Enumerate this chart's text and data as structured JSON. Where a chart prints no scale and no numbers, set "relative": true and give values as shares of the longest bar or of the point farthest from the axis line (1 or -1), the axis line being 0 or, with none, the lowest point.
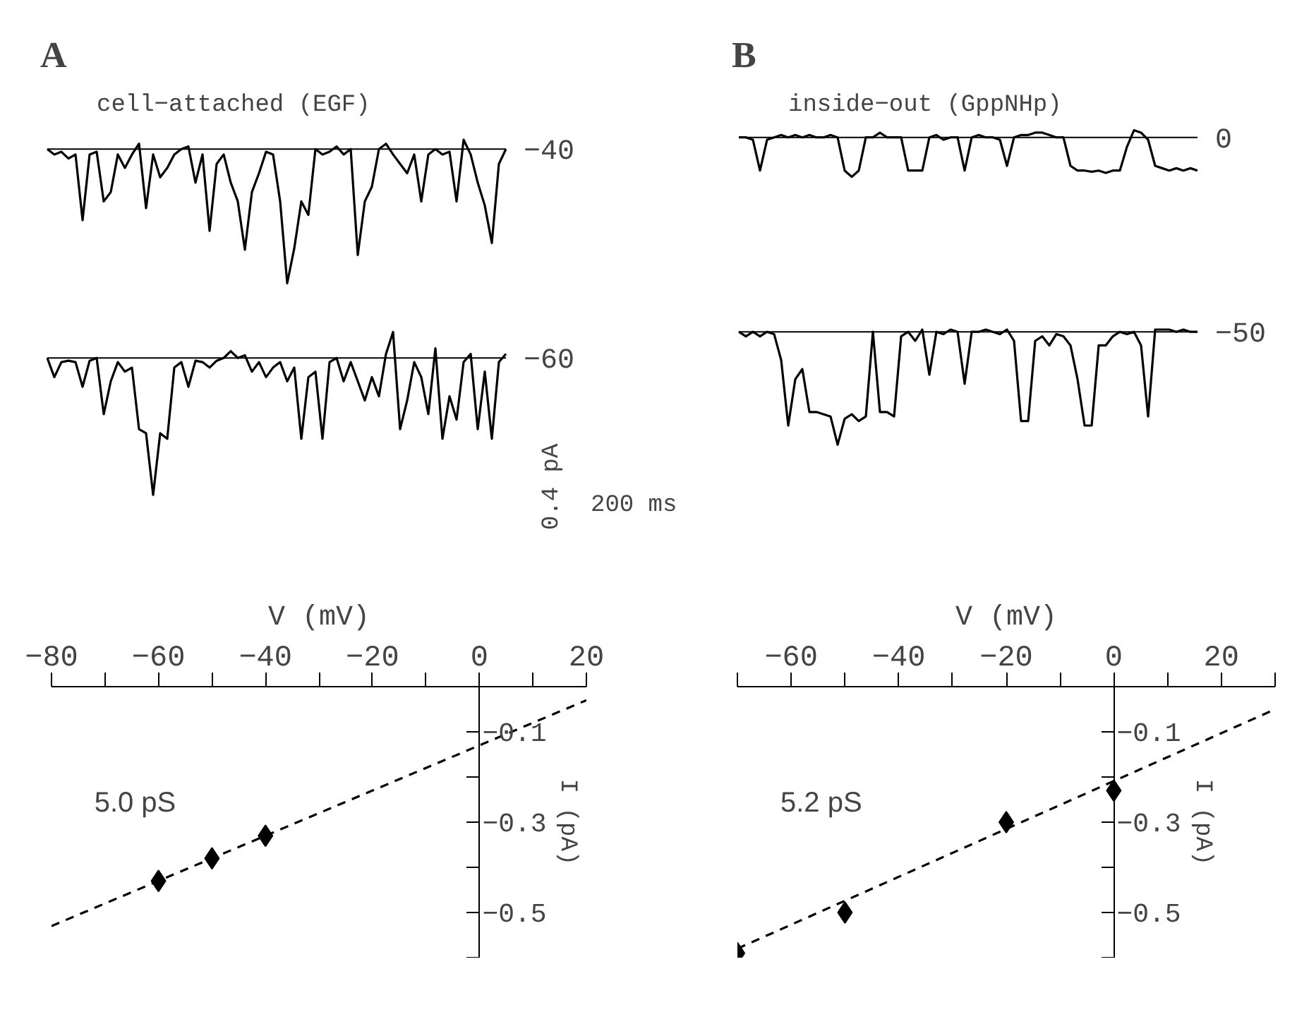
{
  "chart_data": [
    {
      "type": "line",
      "relative": true,
      "title": "A",
      "subtitle": "cell−attached (EGF)",
      "categories": [
        null,
        null,
        null,
        null,
        null,
        null,
        null,
        null,
        null,
        null,
        null,
        null,
        null,
        null,
        null,
        null,
        null,
        null,
        null,
        null,
        null,
        null,
        null,
        null,
        null,
        null,
        null,
        null,
        null,
        null,
        null,
        null,
        null,
        null,
        null,
        null,
        null,
        null,
        null,
        null,
        null,
        null,
        null,
        null,
        null,
        null,
        null,
        null,
        null,
        null,
        null,
        null,
        null,
        null,
        null,
        null,
        null,
        null,
        null,
        null,
        null,
        null,
        null,
        null,
        null,
        null
      ],
      "series": [
        {
          "color": "#000000",
          "values": [
            0,
            -0.04,
            -0.02,
            -0.07,
            -0.04,
            -0.53,
            -0.04,
            -0.02,
            -0.39,
            -0.32,
            -0.04,
            -0.14,
            -0.04,
            0.04,
            -0.44,
            -0.04,
            -0.21,
            -0.14,
            -0.04,
            0,
            0.02,
            -0.25,
            -0.04,
            -0.61,
            -0.11,
            -0.04,
            -0.25,
            -0.39,
            -0.75,
            -0.32,
            -0.18,
            -0.02,
            -0.04,
            -0.39,
            -1,
            -0.74,
            -0.39,
            -0.49,
            0,
            -0.04,
            -0.02,
            0.02,
            -0.04,
            0,
            -0.79,
            -0.39,
            -0.28,
            0,
            0.04,
            -0.04,
            -0.11,
            -0.18,
            -0.04,
            -0.39,
            -0.04,
            0,
            -0.04,
            -0.02,
            -0.39,
            0.07,
            -0.04,
            -0.25,
            -0.42,
            -0.7,
            -0.11,
            0
          ]
        }
      ],
      "ref_lines": [
        {
          "axis": "y",
          "value": 0,
          "label": "−40",
          "color": "#000000"
        }
      ]
    },
    {
      "type": "line",
      "relative": true,
      "title": "B",
      "subtitle": "inside−out (GppNHp)",
      "categories": [
        null,
        null,
        null,
        null,
        null,
        null,
        null,
        null,
        null,
        null,
        null,
        null,
        null,
        null,
        null,
        null,
        null,
        null,
        null,
        null,
        null,
        null,
        null,
        null,
        null,
        null,
        null,
        null,
        null,
        null,
        null,
        null,
        null,
        null,
        null,
        null,
        null,
        null,
        null,
        null,
        null,
        null,
        null,
        null,
        null,
        null,
        null,
        null,
        null,
        null,
        null,
        null,
        null,
        null,
        null,
        null,
        null,
        null,
        null,
        null,
        null,
        null,
        null,
        null,
        null,
        null
      ],
      "series": [
        {
          "color": "#000000",
          "values": [
            0,
            0,
            -0.06,
            -0.84,
            -0.06,
            0,
            0.06,
            0,
            0.06,
            0,
            0.06,
            0,
            0,
            0.06,
            0,
            -0.84,
            -1,
            -0.84,
            0,
            0,
            0.12,
            0,
            0,
            0,
            -0.84,
            -0.84,
            -0.84,
            0,
            0.06,
            -0.06,
            0,
            0,
            -0.84,
            0,
            0.06,
            0,
            0,
            -0.06,
            -0.72,
            0,
            0.06,
            0.06,
            0.12,
            0.12,
            0.06,
            0,
            0,
            -0.72,
            -0.84,
            -0.84,
            -0.87,
            -0.84,
            -0.9,
            -0.84,
            -0.84,
            -0.24,
            0.18,
            0.12,
            -0.06,
            -0.72,
            -0.78,
            -0.84,
            -0.78,
            -0.84,
            -0.78,
            -0.84
          ]
        }
      ],
      "ref_lines": [
        {
          "axis": "y",
          "value": 0,
          "label": "0",
          "color": "#000000"
        }
      ]
    },
    {
      "type": "line",
      "relative": true,
      "categories": [
        null,
        null,
        null,
        null,
        null,
        null,
        null,
        null,
        null,
        null,
        null,
        null,
        null,
        null,
        null,
        null,
        null,
        null,
        null,
        null,
        null,
        null,
        null,
        null,
        null,
        null,
        null,
        null,
        null,
        null,
        null,
        null,
        null,
        null,
        null,
        null,
        null,
        null,
        null,
        null,
        null,
        null,
        null,
        null,
        null,
        null,
        null,
        null,
        null,
        null,
        null,
        null,
        null,
        null,
        null,
        null,
        null,
        null,
        null,
        null,
        null,
        null,
        null,
        null,
        null,
        null
      ],
      "series": [
        {
          "color": "#000000",
          "values": [
            0,
            -0.14,
            -0.03,
            -0.02,
            -0.03,
            -0.21,
            -0.02,
            0,
            -0.41,
            -0.17,
            -0.03,
            -0.1,
            -0.07,
            -0.52,
            -0.55,
            -1,
            -0.55,
            -0.59,
            -0.07,
            -0.03,
            -0.21,
            -0.02,
            -0.03,
            -0.07,
            -0.02,
            0,
            0.05,
            0,
            0.02,
            -0.1,
            -0.03,
            -0.14,
            -0.07,
            -0.03,
            -0.17,
            -0.07,
            -0.59,
            -0.14,
            -0.1,
            -0.59,
            -0.03,
            0,
            -0.17,
            -0.03,
            -0.17,
            -0.31,
            -0.14,
            -0.28,
            0.03,
            0.19,
            -0.52,
            -0.31,
            -0.03,
            -0.14,
            -0.41,
            0.07,
            -0.59,
            -0.28,
            -0.45,
            -0.03,
            0.03,
            -0.52,
            -0.1,
            -0.59,
            -0.03,
            0.03
          ]
        }
      ],
      "ref_lines": [
        {
          "axis": "y",
          "value": 0,
          "label": "−60",
          "color": "#000000"
        }
      ],
      "annotations": [
        "0.4 pA",
        "200 ms"
      ]
    },
    {
      "type": "line",
      "relative": true,
      "categories": [
        null,
        null,
        null,
        null,
        null,
        null,
        null,
        null,
        null,
        null,
        null,
        null,
        null,
        null,
        null,
        null,
        null,
        null,
        null,
        null,
        null,
        null,
        null,
        null,
        null,
        null,
        null,
        null,
        null,
        null,
        null,
        null,
        null,
        null,
        null,
        null,
        null,
        null,
        null,
        null,
        null,
        null,
        null,
        null,
        null,
        null,
        null,
        null,
        null,
        null,
        null,
        null,
        null,
        null,
        null,
        null,
        null,
        null,
        null,
        null,
        null,
        null,
        null,
        null,
        null,
        null
      ],
      "series": [
        {
          "color": "#000000",
          "values": [
            0,
            -0.04,
            0,
            -0.04,
            0,
            -0.02,
            -0.25,
            -0.83,
            -0.42,
            -0.33,
            -0.71,
            -0.71,
            -0.73,
            -0.75,
            -1,
            -0.77,
            -0.73,
            -0.79,
            -0.75,
            0,
            -0.71,
            -0.71,
            -0.75,
            -0.04,
            0,
            -0.08,
            0.02,
            -0.38,
            0,
            -0.02,
            0.02,
            0,
            -0.46,
            0,
            0,
            0.02,
            0,
            -0.02,
            0.02,
            -0.08,
            -0.79,
            -0.79,
            -0.08,
            -0.04,
            -0.12,
            -0.02,
            -0.04,
            -0.12,
            -0.42,
            -0.83,
            -0.83,
            -0.12,
            -0.12,
            -0.04,
            0,
            -0.02,
            0,
            -0.12,
            -0.75,
            0.02,
            0.02,
            0.02,
            0,
            0.02,
            0,
            0
          ]
        }
      ],
      "ref_lines": [
        {
          "axis": "y",
          "value": 0,
          "label": "−50",
          "color": "#000000"
        }
      ]
    },
    {
      "type": "scatter",
      "xlabel": "V (mV)",
      "ylabel": "I (pA)",
      "xlim": [
        -80,
        20
      ],
      "ylim": [
        -0.6,
        0
      ],
      "xticks": [
        -80,
        {
          "value": -70,
          "label": null
        },
        -60,
        {
          "value": -50,
          "label": null
        },
        -40,
        {
          "value": -30,
          "label": null
        },
        -20,
        {
          "value": -10,
          "label": null
        },
        0,
        {
          "value": 10,
          "label": null
        },
        20
      ],
      "yticks": [
        -0.1,
        {
          "value": -0.2,
          "label": null
        },
        -0.3,
        {
          "value": -0.4,
          "label": null
        },
        -0.5,
        {
          "value": -0.6,
          "label": null
        }
      ],
      "series": [
        {
          "type": "scatter",
          "marker": "diamond",
          "color": "#000000",
          "x": [
            -60,
            -50,
            -40
          ],
          "values": [
            -0.43,
            -0.38,
            -0.33
          ]
        },
        {
          "type": "line",
          "line_style": "dashed",
          "color": "#000000",
          "x": [
            -80,
            20
          ],
          "values": [
            -0.53,
            -0.03
          ]
        }
      ],
      "annotations": [
        "5.0 pS"
      ]
    },
    {
      "type": "scatter",
      "xlabel": "V (mV)",
      "ylabel": "I (pA)",
      "xlim": [
        -70,
        30
      ],
      "ylim": [
        -0.6,
        0
      ],
      "xticks": [
        {
          "value": -70,
          "label": null
        },
        -60,
        {
          "value": -50,
          "label": null
        },
        -40,
        {
          "value": -30,
          "label": null
        },
        -20,
        {
          "value": -10,
          "label": null
        },
        0,
        {
          "value": 10,
          "label": null
        },
        20,
        {
          "value": 30,
          "label": null
        }
      ],
      "yticks": [
        -0.1,
        {
          "value": -0.2,
          "label": null
        },
        -0.3,
        {
          "value": -0.4,
          "label": null
        },
        -0.5,
        {
          "value": -0.6,
          "label": null
        }
      ],
      "series": [
        {
          "type": "scatter",
          "marker": "diamond",
          "color": "#000000",
          "x": [
            -70,
            -50,
            -20,
            0
          ],
          "values": [
            -0.59,
            -0.5,
            -0.3,
            -0.23
          ]
        },
        {
          "type": "line",
          "line_style": "dashed",
          "color": "#000000",
          "x": [
            -70,
            30
          ],
          "values": [
            -0.58,
            -0.05
          ]
        }
      ],
      "annotations": [
        "5.2 pS"
      ]
    }
  ]
}
